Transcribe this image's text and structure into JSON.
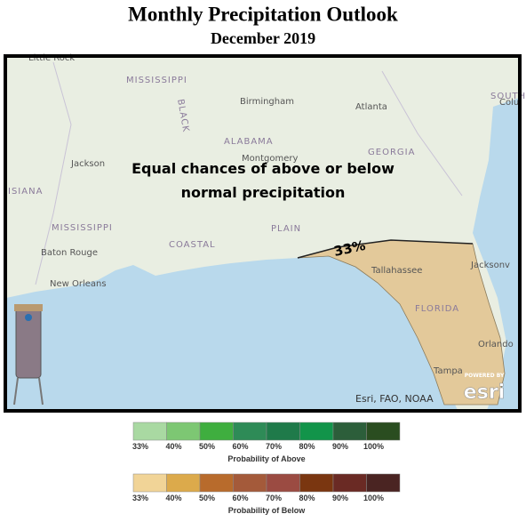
{
  "header": {
    "title": "Monthly Precipitation Outlook",
    "subtitle": "December 2019"
  },
  "map": {
    "labels": [
      "Little Rock",
      "MISSISSIPPI",
      "Birmingham",
      "Atlanta",
      "Colu",
      "SOUTH CAROL",
      "ALABAMA",
      "Montgomery",
      "GEORGIA",
      "Jackson",
      "ISIANA",
      "MISSISSIPPI",
      "Baton Rouge",
      "New Orleans",
      "Tallahassee",
      "FLORIDA",
      "Jacksonv",
      "Orlando",
      "Tampa",
      "COASTAL",
      "PLAIN",
      "BLACK"
    ],
    "annotation": [
      "Equal chances of above or below",
      "normal precipitation"
    ],
    "contour_label": "33%",
    "attribution": "Esri, FAO, NOAA",
    "powered_by": "POWERED BY",
    "esri": "esri"
  },
  "legend_above": {
    "title": "Probability of Above",
    "labels": [
      "33%",
      "40%",
      "50%",
      "60%",
      "70%",
      "80%",
      "90%",
      "100%"
    ],
    "colors": [
      "#a9d9a2",
      "#7dc773",
      "#3fae3f",
      "#2e8b57",
      "#1f7a4a",
      "#12944a",
      "#2c5e3a",
      "#2a4d20"
    ]
  },
  "legend_below": {
    "title": "Probability of Below",
    "labels": [
      "33%",
      "40%",
      "50%",
      "60%",
      "70%",
      "80%",
      "90%",
      "100%"
    ],
    "colors": [
      "#f1d497",
      "#dcaa4b",
      "#b86b2c",
      "#a45a3a",
      "#9b4b42",
      "#7a3610",
      "#6a2a24",
      "#4a2422"
    ]
  }
}
